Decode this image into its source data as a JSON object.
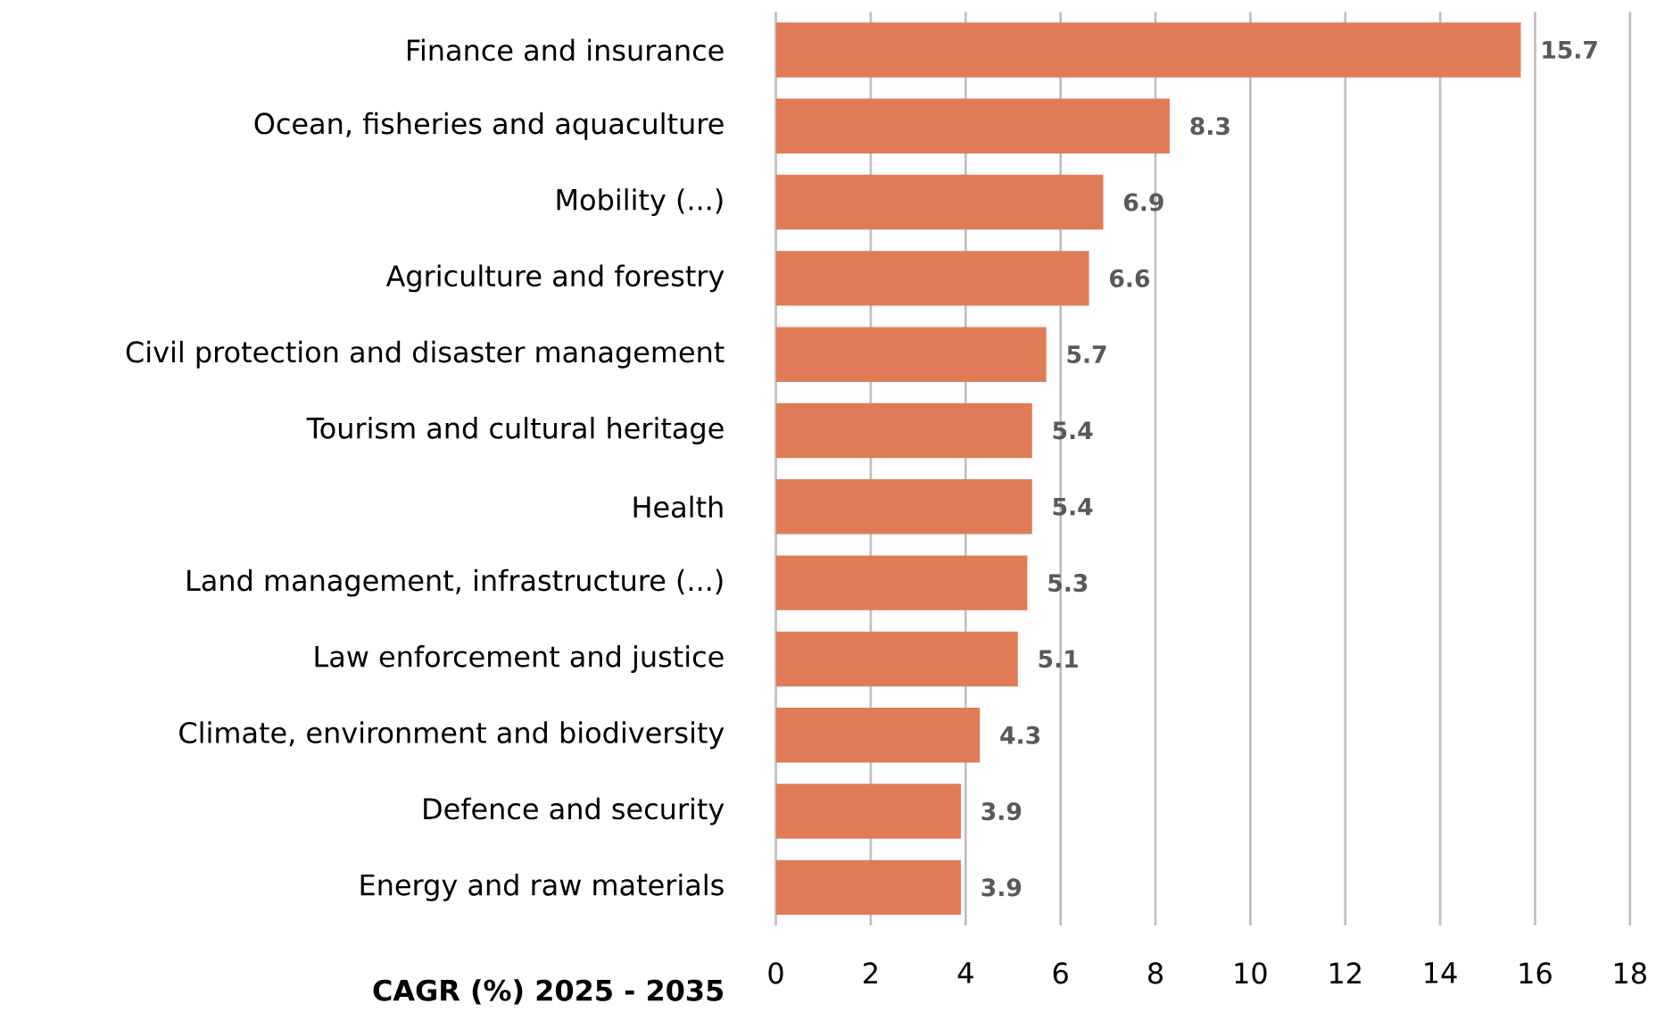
{
  "chart_data": {
    "type": "bar",
    "orientation": "horizontal",
    "xlabel": "CAGR (%) 2025 - 2035",
    "categories": [
      "Finance and insurance",
      "Ocean, fisheries and aquaculture",
      "Mobility (...)",
      "Agriculture and forestry",
      "Civil protection and disaster management",
      "Tourism and cultural heritage",
      "Health",
      "Land management, infrastructure (...)",
      "Law enforcement and justice",
      "Climate, environment and biodiversity",
      "Defence and security",
      "Energy and raw materials"
    ],
    "values": [
      15.7,
      8.3,
      6.9,
      6.6,
      5.7,
      5.4,
      5.4,
      5.3,
      5.1,
      4.3,
      3.9,
      3.9
    ],
    "color": "#e07b58",
    "data_labels": true,
    "grid": "x",
    "xlim": [
      0,
      18
    ],
    "xticks": [
      0,
      2,
      4,
      6,
      8,
      10,
      12,
      14,
      16,
      18
    ]
  }
}
